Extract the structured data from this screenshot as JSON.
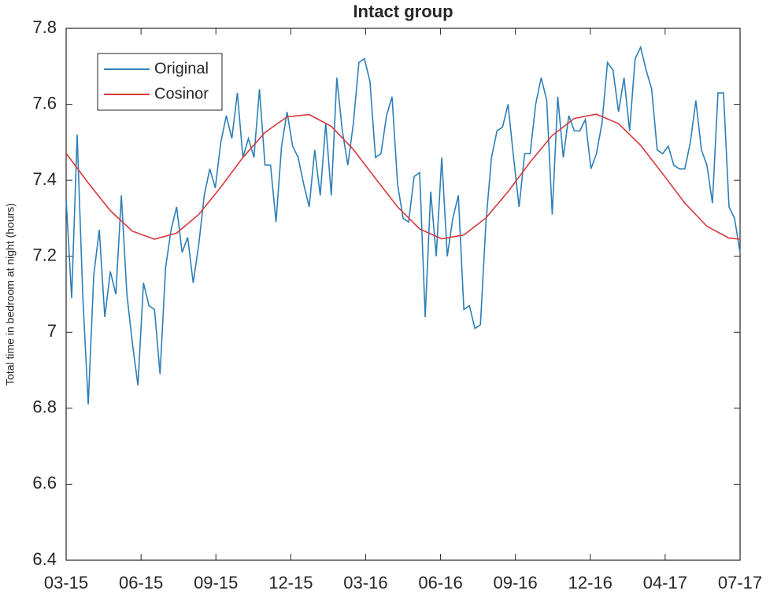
{
  "chart_data": {
    "type": "line",
    "title": "Intact group",
    "ylabel": "Total time in bedroom  at night (hours)",
    "xlim": [
      0,
      122
    ],
    "xticks": [
      {
        "value": 0,
        "label": "03-15"
      },
      {
        "value": 13.56,
        "label": "06-15"
      },
      {
        "value": 27.11,
        "label": "09-15"
      },
      {
        "value": 40.67,
        "label": "12-15"
      },
      {
        "value": 54.22,
        "label": "03-16"
      },
      {
        "value": 67.78,
        "label": "06-16"
      },
      {
        "value": 81.33,
        "label": "09-16"
      },
      {
        "value": 94.89,
        "label": "12-16"
      },
      {
        "value": 108.44,
        "label": "04-17"
      },
      {
        "value": 122,
        "label": "07-17"
      }
    ],
    "ylim": [
      6.4,
      7.8
    ],
    "yticks": [
      6.4,
      6.6,
      6.8,
      7,
      7.2,
      7.4,
      7.6,
      7.8
    ],
    "legend": "upper left",
    "series": [
      {
        "name": "Original",
        "color": "#2d7fb8",
        "x": [
          0,
          1,
          2,
          3,
          4,
          5,
          6,
          7,
          8,
          9,
          10,
          11,
          12,
          13,
          14,
          15,
          16,
          17,
          18,
          19,
          20,
          21,
          22,
          23,
          24,
          25,
          26,
          27,
          28,
          29,
          30,
          31,
          32,
          33,
          34,
          35,
          36,
          37,
          38,
          39,
          40,
          41,
          42,
          43,
          44,
          45,
          46,
          47,
          48,
          49,
          50,
          51,
          52,
          53,
          54,
          55,
          56,
          57,
          58,
          59,
          60,
          61,
          62,
          63,
          64,
          65,
          66,
          67,
          68,
          69,
          70,
          71,
          72,
          73,
          74,
          75,
          76,
          77,
          78,
          79,
          80,
          81,
          82,
          83,
          84,
          85,
          86,
          87,
          88,
          89,
          90,
          91,
          92,
          93,
          94,
          95,
          96,
          97,
          98,
          99,
          100,
          101,
          102,
          103,
          104,
          105,
          106,
          107,
          108,
          109,
          110,
          111,
          112,
          113,
          114,
          115,
          116,
          117,
          118,
          119,
          120,
          121,
          122
        ],
        "values": [
          7.35,
          7.09,
          7.52,
          7.1,
          6.81,
          7.15,
          7.27,
          7.04,
          7.16,
          7.1,
          7.36,
          7.1,
          6.97,
          6.86,
          7.13,
          7.07,
          7.06,
          6.89,
          7.17,
          7.27,
          7.33,
          7.21,
          7.25,
          7.13,
          7.23,
          7.36,
          7.43,
          7.38,
          7.5,
          7.57,
          7.51,
          7.63,
          7.46,
          7.51,
          7.46,
          7.64,
          7.44,
          7.44,
          7.29,
          7.49,
          7.58,
          7.49,
          7.46,
          7.39,
          7.33,
          7.48,
          7.36,
          7.55,
          7.36,
          7.67,
          7.53,
          7.44,
          7.55,
          7.71,
          7.72,
          7.66,
          7.46,
          7.47,
          7.57,
          7.62,
          7.39,
          7.3,
          7.29,
          7.41,
          7.42,
          7.04,
          7.37,
          7.2,
          7.46,
          7.2,
          7.3,
          7.36,
          7.06,
          7.07,
          7.01,
          7.02,
          7.29,
          7.46,
          7.53,
          7.54,
          7.6,
          7.46,
          7.33,
          7.47,
          7.47,
          7.6,
          7.67,
          7.61,
          7.31,
          7.62,
          7.46,
          7.57,
          7.53,
          7.53,
          7.56,
          7.43,
          7.47,
          7.55,
          7.71,
          7.69,
          7.58,
          7.67,
          7.53,
          7.72,
          7.75,
          7.69,
          7.64,
          7.48,
          7.47,
          7.49,
          7.44,
          7.43,
          7.43,
          7.5,
          7.61,
          7.48,
          7.44,
          7.34,
          7.63,
          7.63,
          7.33,
          7.3,
          7.21
        ]
      },
      {
        "name": "Cosinor",
        "color": "#d9383a",
        "x": [
          0,
          4,
          8,
          12,
          16,
          20,
          24,
          28,
          32,
          36,
          40,
          44,
          48,
          52,
          56,
          60,
          64,
          68,
          72,
          76,
          80,
          84,
          88,
          92,
          96,
          100,
          104,
          108,
          112,
          116,
          120,
          122
        ],
        "values": [
          7.471,
          7.393,
          7.32,
          7.266,
          7.245,
          7.261,
          7.31,
          7.382,
          7.46,
          7.526,
          7.567,
          7.573,
          7.542,
          7.481,
          7.405,
          7.33,
          7.272,
          7.246,
          7.256,
          7.301,
          7.37,
          7.448,
          7.518,
          7.563,
          7.574,
          7.549,
          7.492,
          7.417,
          7.34,
          7.279,
          7.248,
          7.245
        ]
      }
    ]
  }
}
